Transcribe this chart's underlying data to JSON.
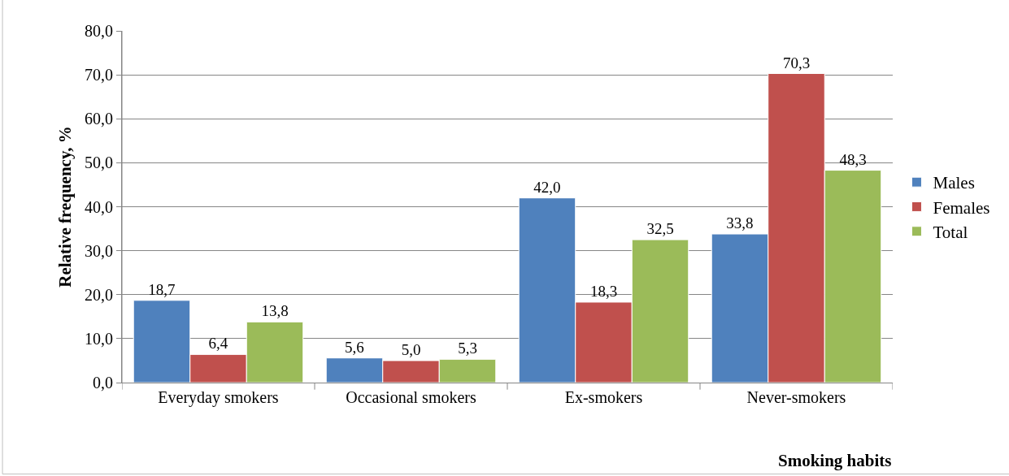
{
  "chart_data": {
    "type": "bar",
    "xlabel": "Smoking habits",
    "ylabel": "Relative frequency, %",
    "categories": [
      "Everyday smokers",
      "Occasional smokers",
      "Ex-smokers",
      "Never-smokers"
    ],
    "series": [
      {
        "name": "Males",
        "color": "#4f81bd",
        "values": [
          18.7,
          5.6,
          42.0,
          33.8
        ],
        "value_labels": [
          "18,7",
          "5,6",
          "42,0",
          "33,8"
        ]
      },
      {
        "name": "Females",
        "color": "#c0504d",
        "values": [
          6.4,
          5.0,
          18.3,
          70.3
        ],
        "value_labels": [
          "6,4",
          "5,0",
          "18,3",
          "70,3"
        ]
      },
      {
        "name": "Total",
        "color": "#9bbb59",
        "values": [
          13.8,
          5.3,
          32.5,
          48.3
        ],
        "value_labels": [
          "13,8",
          "5,3",
          "32,5",
          "48,3"
        ]
      }
    ],
    "ylim": [
      0,
      80
    ],
    "yticks": [
      {
        "value": 0,
        "label": "0,0"
      },
      {
        "value": 10,
        "label": "10,0"
      },
      {
        "value": 20,
        "label": "20,0"
      },
      {
        "value": 30,
        "label": "30,0"
      },
      {
        "value": 40,
        "label": "40,0"
      },
      {
        "value": 50,
        "label": "50,0"
      },
      {
        "value": 60,
        "label": "60,0"
      },
      {
        "value": 70,
        "label": "70,0"
      },
      {
        "value": 80,
        "label": "80,0"
      }
    ],
    "grid": "y",
    "legend": "right"
  }
}
